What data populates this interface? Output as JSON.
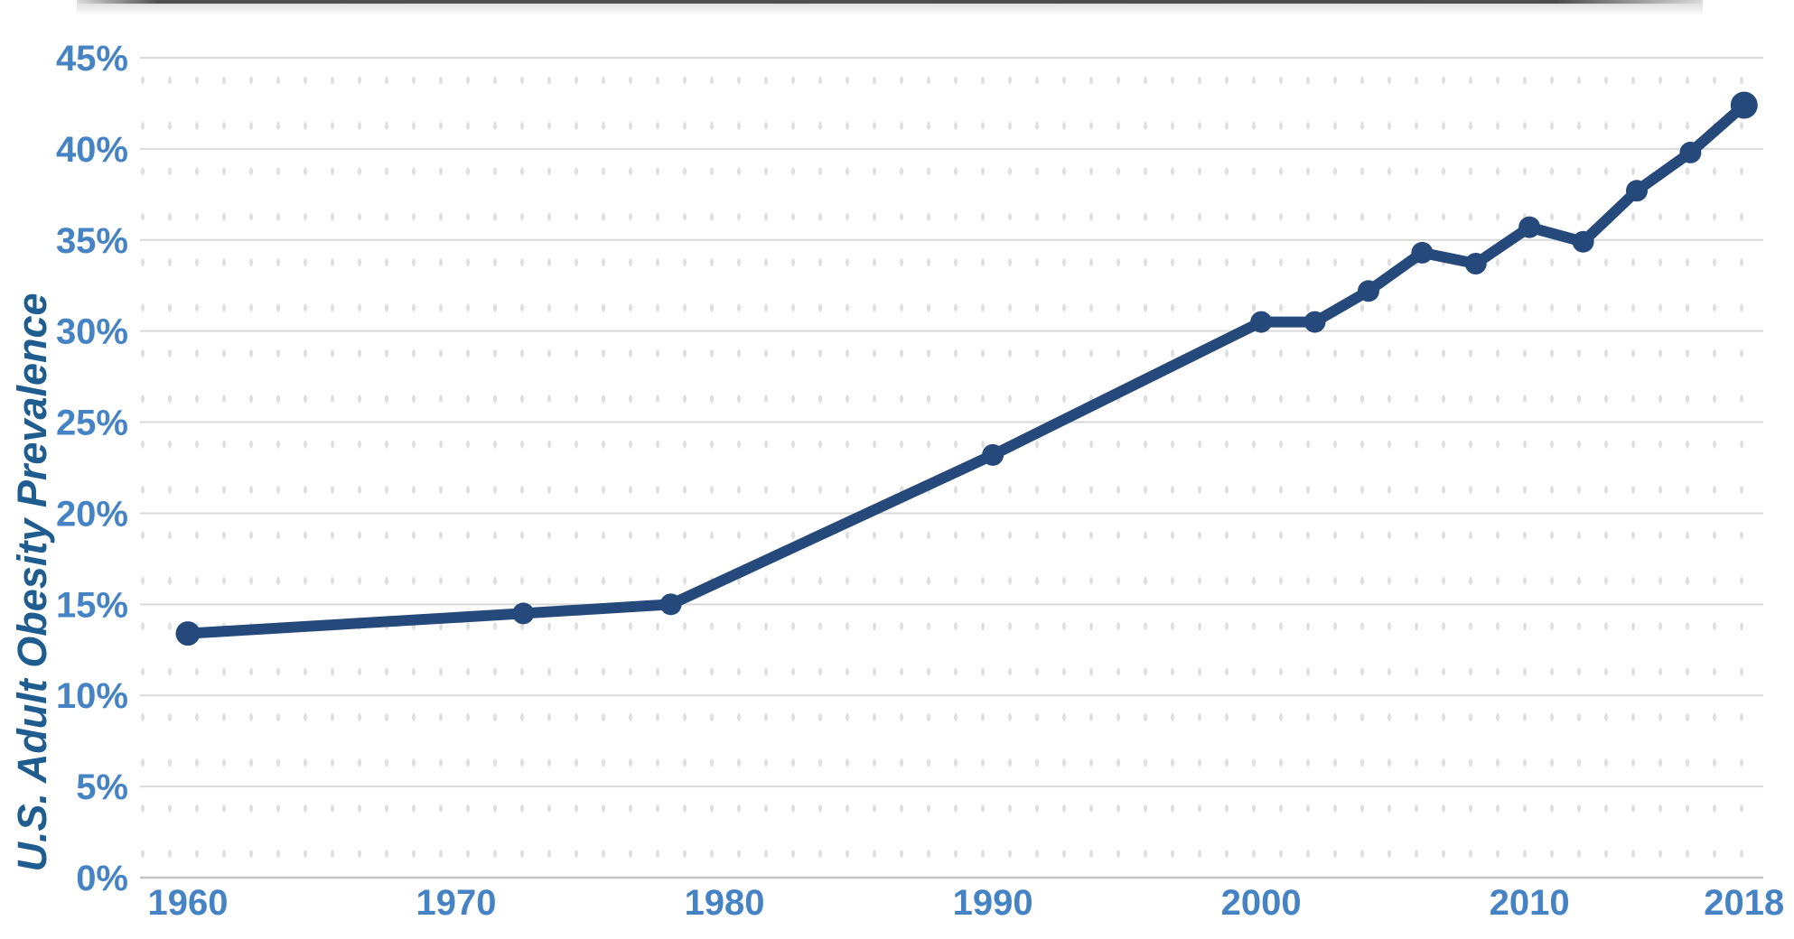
{
  "chart_data": {
    "type": "line",
    "title": "",
    "xlabel": "",
    "ylabel": "U.S. Adult Obesity Prevalence",
    "ylim": [
      0,
      45
    ],
    "y_tick_step_pct": 5,
    "y_ticks": [
      "0%",
      "5%",
      "10%",
      "15%",
      "20%",
      "25%",
      "30%",
      "35%",
      "40%",
      "45%"
    ],
    "x_ticks": [
      1960,
      1970,
      1980,
      1990,
      2000,
      2010,
      2018
    ],
    "xlim": [
      1958.2,
      2018.7
    ],
    "grid": "horizontal-only",
    "legend_position": "none",
    "series": [
      {
        "name": "U.S. Adult Obesity Prevalence",
        "marker": "circle",
        "x": [
          1960,
          1972.5,
          1978,
          1990,
          2000,
          2002,
          2004,
          2006,
          2008,
          2010,
          2012,
          2014,
          2016,
          2018
        ],
        "values": [
          13.4,
          14.5,
          15.0,
          23.2,
          30.5,
          30.5,
          32.2,
          34.3,
          33.7,
          35.7,
          34.9,
          37.7,
          39.8,
          42.4
        ]
      }
    ]
  },
  "colors": {
    "line": "#25497B",
    "marker": "#25497B",
    "tick_label": "#4583C5",
    "axis_title": "#1F5C8F",
    "gridline": "#D9D9D9",
    "baseline": "#C6C6C6",
    "background": "#FFFFFF"
  }
}
